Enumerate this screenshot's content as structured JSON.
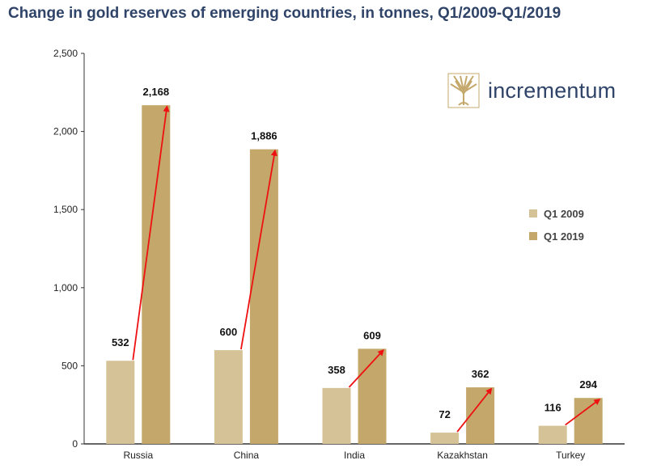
{
  "title": "Change in gold reserves of emerging countries, in tonnes, Q1/2009-Q1/2019",
  "logo": {
    "text": "incrementum",
    "icon": "tree-icon",
    "color": "#c4a86b"
  },
  "colors": {
    "q1_2009": "#d6c297",
    "q1_2019": "#c4a86b",
    "arrow": "#ee1111",
    "title": "#2f4468"
  },
  "legend": [
    "Q1 2009",
    "Q1 2019"
  ],
  "chart_data": {
    "type": "bar",
    "title": "Change in gold reserves of emerging countries, in tonnes, Q1/2009-Q1/2019",
    "xlabel": "",
    "ylabel": "",
    "ylim": [
      0,
      2500
    ],
    "yticks": [
      "0",
      "500",
      "1,000",
      "1,500",
      "2,000",
      "2,500"
    ],
    "categories": [
      "Russia",
      "China",
      "India",
      "Kazakhstan",
      "Turkey"
    ],
    "series": [
      {
        "name": "Q1 2009",
        "values": [
          532,
          600,
          358,
          72,
          116
        ],
        "labels": [
          "532",
          "600",
          "358",
          "72",
          "116"
        ]
      },
      {
        "name": "Q1 2019",
        "values": [
          2168,
          1886,
          609,
          362,
          294
        ],
        "labels": [
          "2,168",
          "1,886",
          "609",
          "362",
          "294"
        ]
      }
    ],
    "legend_position": "right",
    "grid": false,
    "annotations": "red arrows from Q1 2009 bar top to Q1 2019 bar top"
  }
}
